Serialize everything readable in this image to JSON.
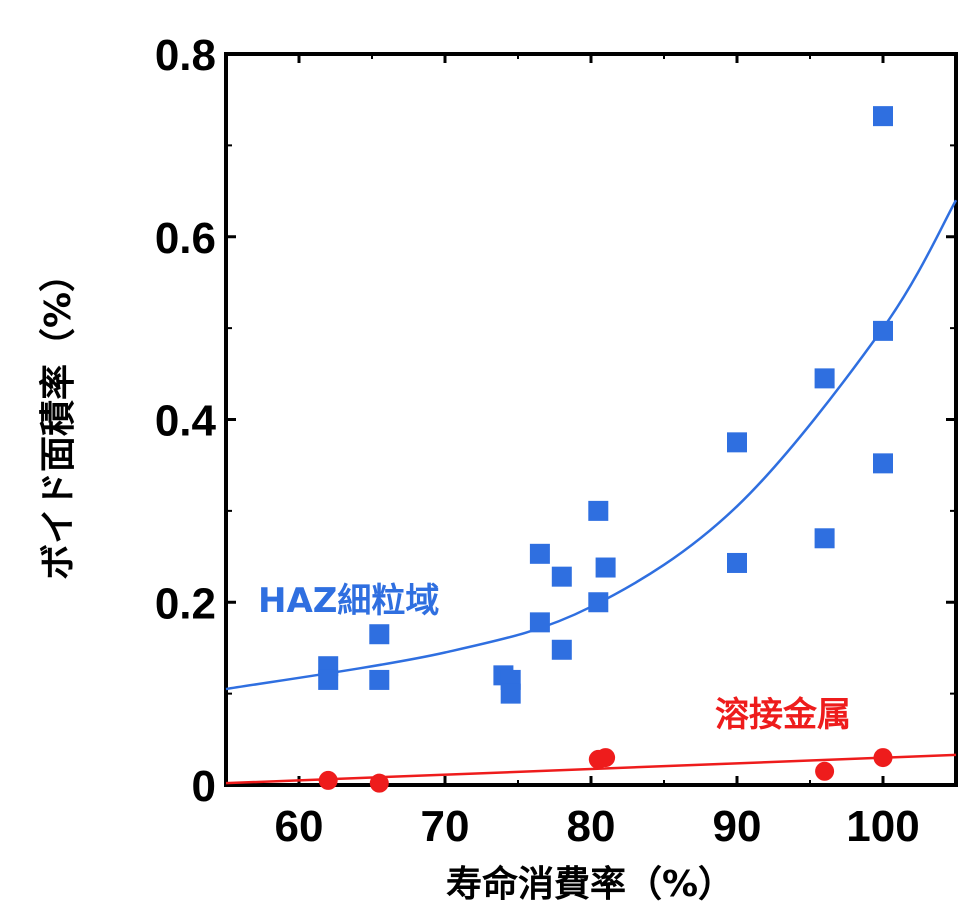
{
  "chart_data": {
    "type": "scatter",
    "title": "",
    "xlabel": "寿命消費率（%）",
    "ylabel": "ボイド面積率（%）",
    "xlim": [
      55,
      105
    ],
    "ylim": [
      0,
      0.8
    ],
    "x_ticks": [
      60,
      70,
      80,
      90,
      100
    ],
    "y_ticks": [
      0,
      0.2,
      0.4,
      0.6,
      0.8
    ],
    "x_tick_labels": [
      "60",
      "70",
      "80",
      "90",
      "100"
    ],
    "y_tick_labels": [
      "0",
      "0.2",
      "0.4",
      "0.6",
      "0.8"
    ],
    "grid": false,
    "legend": "none",
    "series": [
      {
        "name": "HAZ細粒域",
        "marker": "square",
        "color": "#2f6fe0",
        "points": [
          [
            62,
            0.13
          ],
          [
            62,
            0.115
          ],
          [
            65.5,
            0.165
          ],
          [
            65.5,
            0.115
          ],
          [
            74,
            0.12
          ],
          [
            74.5,
            0.115
          ],
          [
            74.5,
            0.1
          ],
          [
            76.5,
            0.253
          ],
          [
            76.5,
            0.178
          ],
          [
            78,
            0.228
          ],
          [
            78,
            0.148
          ],
          [
            80.5,
            0.3
          ],
          [
            80.5,
            0.2
          ],
          [
            81,
            0.238
          ],
          [
            90,
            0.375
          ],
          [
            90,
            0.243
          ],
          [
            96,
            0.445
          ],
          [
            96,
            0.27
          ],
          [
            100,
            0.732
          ],
          [
            100,
            0.497
          ],
          [
            100,
            0.352
          ]
        ],
        "trendline": {
          "type": "exponential",
          "points": [
            [
              55,
              0.105
            ],
            [
              70,
              0.145
            ],
            [
              80,
              0.195
            ],
            [
              90,
              0.305
            ],
            [
              100,
              0.5
            ],
            [
              105,
              0.64
            ]
          ]
        }
      },
      {
        "name": "溶接金属",
        "marker": "circle",
        "color": "#ee1c1c",
        "points": [
          [
            62,
            0.005
          ],
          [
            65.5,
            0.002
          ],
          [
            80.5,
            0.028
          ],
          [
            81,
            0.03
          ],
          [
            96,
            0.015
          ],
          [
            100,
            0.03
          ]
        ],
        "trendline": {
          "type": "linear",
          "points": [
            [
              55,
              0.002
            ],
            [
              105,
              0.033
            ]
          ]
        }
      }
    ]
  }
}
